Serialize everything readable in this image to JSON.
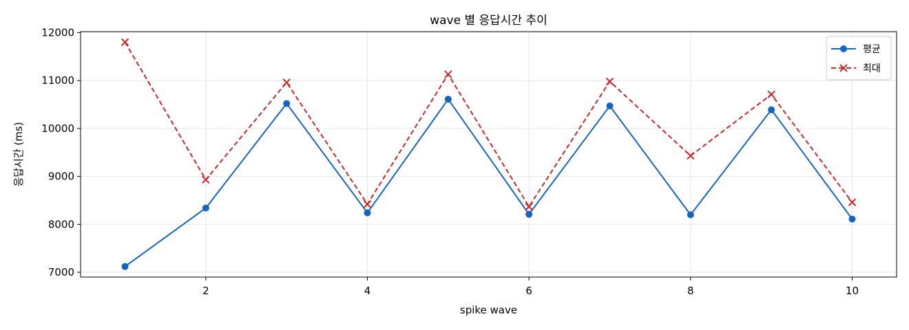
{
  "chart_data": {
    "type": "line",
    "title": "wave 별 응답시간 추이",
    "xlabel": "spike wave",
    "ylabel": "응답시간 (ms)",
    "x": [
      1,
      2,
      3,
      4,
      5,
      6,
      7,
      8,
      9,
      10
    ],
    "xticks": [
      "2",
      "4",
      "6",
      "8",
      "10"
    ],
    "xtick_values": [
      2,
      4,
      6,
      8,
      10
    ],
    "yticks": [
      "7000",
      "8000",
      "9000",
      "10000",
      "11000",
      "12000"
    ],
    "ytick_values": [
      7000,
      8000,
      9000,
      10000,
      11000,
      12000
    ],
    "xlim": [
      0.45,
      10.55
    ],
    "ylim": [
      6900,
      12020
    ],
    "grid": true,
    "legend_position": "top-right",
    "series": [
      {
        "name": "평균",
        "color": "#1565c0",
        "marker": "circle",
        "line_style": "solid",
        "values": [
          7120,
          8340,
          10520,
          8240,
          10610,
          8210,
          10470,
          8200,
          10390,
          8110
        ]
      },
      {
        "name": "최대",
        "color": "#c62828",
        "marker": "x",
        "line_style": "dashed",
        "values": [
          11800,
          8930,
          10960,
          8420,
          11130,
          8370,
          10980,
          9430,
          10710,
          8460
        ]
      }
    ]
  }
}
